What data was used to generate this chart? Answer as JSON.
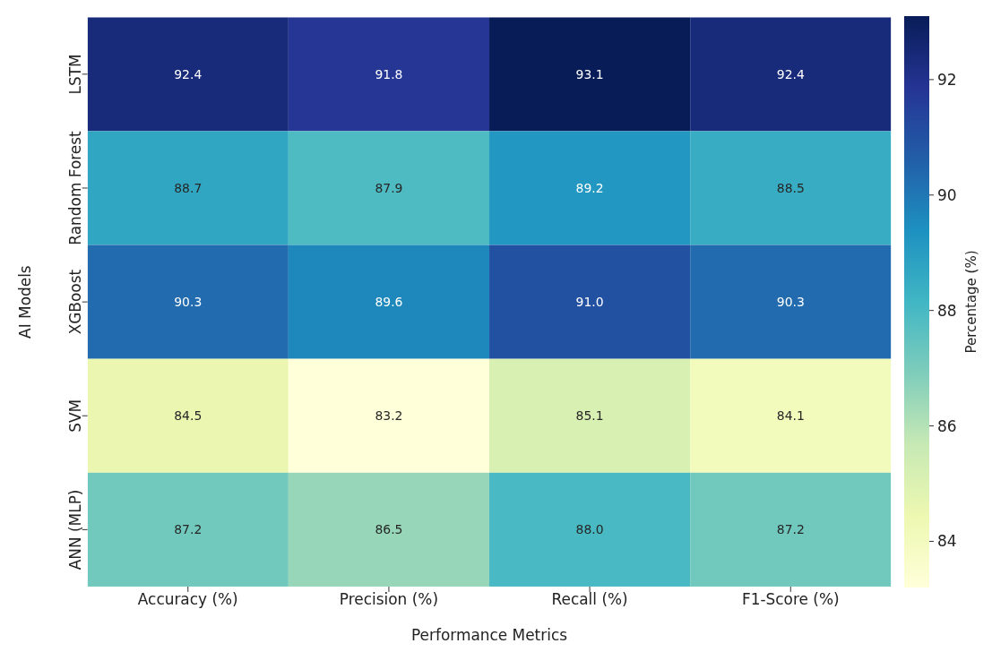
{
  "chart_data": {
    "type": "heatmap",
    "xlabel": "Performance Metrics",
    "ylabel": "AI Models",
    "clabel": "Percentage (%)",
    "categories": [
      "Accuracy (%)",
      "Precision (%)",
      "Recall (%)",
      "F1-Score (%)"
    ],
    "y_categories": [
      "LSTM",
      "Random Forest",
      "XGBoost",
      "SVM",
      "ANN (MLP)"
    ],
    "cells": [
      [
        92.4,
        91.8,
        93.1,
        92.4
      ],
      [
        88.7,
        87.9,
        89.2,
        88.5
      ],
      [
        90.3,
        89.6,
        91.0,
        90.3
      ],
      [
        84.5,
        83.2,
        85.1,
        84.1
      ],
      [
        87.2,
        86.5,
        88.0,
        87.2
      ]
    ],
    "cell_labels": [
      [
        "92.4",
        "91.8",
        "93.1",
        "92.4"
      ],
      [
        "88.7",
        "87.9",
        "89.2",
        "88.5"
      ],
      [
        "90.3",
        "89.6",
        "91.0",
        "90.3"
      ],
      [
        "84.5",
        "83.2",
        "85.1",
        "84.1"
      ],
      [
        "87.2",
        "86.5",
        "88.0",
        "87.2"
      ]
    ],
    "clim": [
      83.2,
      93.1
    ],
    "cticks": [
      84,
      86,
      88,
      90,
      92
    ]
  }
}
